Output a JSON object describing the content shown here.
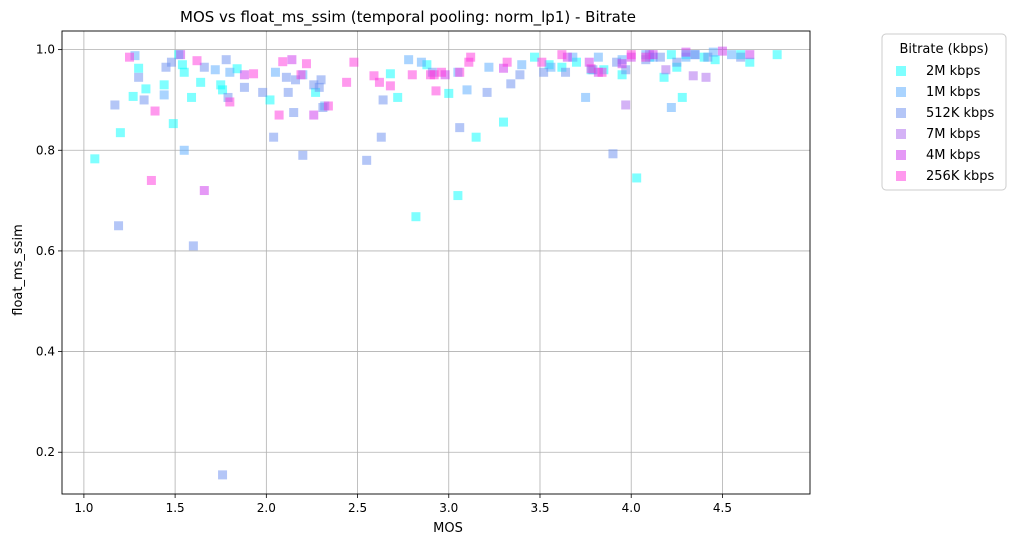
{
  "chart_data": {
    "type": "scatter",
    "title": "MOS vs float_ms_ssim (temporal pooling: norm_lp1) - Bitrate",
    "xlabel": "MOS",
    "ylabel": "float_ms_ssim",
    "xlim": [
      0.88,
      4.98
    ],
    "ylim": [
      0.117,
      1.037
    ],
    "x_ticks": [
      "1.0",
      "1.5",
      "2.0",
      "2.5",
      "3.0",
      "3.5",
      "4.0",
      "4.5"
    ],
    "x_tick_values": [
      1.0,
      1.5,
      2.0,
      2.5,
      3.0,
      3.5,
      4.0,
      4.5
    ],
    "y_ticks": [
      "0.2",
      "0.4",
      "0.6",
      "0.8",
      "1.0"
    ],
    "y_tick_values": [
      0.2,
      0.4,
      0.6,
      0.8,
      1.0
    ],
    "grid": true,
    "legend_title": "Bitrate (kbps)",
    "legend_position": "outside-right",
    "marker": "square",
    "series": [
      {
        "name": "2M kbps",
        "color": "#00ffff",
        "points": [
          [
            1.06,
            0.783
          ],
          [
            1.2,
            0.835
          ],
          [
            1.27,
            0.907
          ],
          [
            1.3,
            0.963
          ],
          [
            1.34,
            0.922
          ],
          [
            1.44,
            0.93
          ],
          [
            1.49,
            0.853
          ],
          [
            1.52,
            0.99
          ],
          [
            1.54,
            0.97
          ],
          [
            1.55,
            0.955
          ],
          [
            1.59,
            0.905
          ],
          [
            1.64,
            0.935
          ],
          [
            1.75,
            0.93
          ],
          [
            1.76,
            0.92
          ],
          [
            1.84,
            0.962
          ],
          [
            2.02,
            0.9
          ],
          [
            2.27,
            0.915
          ],
          [
            2.68,
            0.952
          ],
          [
            2.72,
            0.905
          ],
          [
            2.82,
            0.668
          ],
          [
            2.88,
            0.97
          ],
          [
            3.0,
            0.913
          ],
          [
            3.05,
            0.71
          ],
          [
            3.15,
            0.826
          ],
          [
            3.3,
            0.856
          ],
          [
            3.47,
            0.985
          ],
          [
            3.55,
            0.97
          ],
          [
            3.62,
            0.965
          ],
          [
            3.7,
            0.975
          ],
          [
            3.78,
            0.96
          ],
          [
            3.85,
            0.96
          ],
          [
            3.95,
            0.95
          ],
          [
            4.03,
            0.745
          ],
          [
            4.1,
            0.985
          ],
          [
            4.18,
            0.945
          ],
          [
            4.22,
            0.99
          ],
          [
            4.25,
            0.965
          ],
          [
            4.28,
            0.905
          ],
          [
            4.3,
            0.99
          ],
          [
            4.4,
            0.985
          ],
          [
            4.46,
            0.98
          ],
          [
            4.6,
            0.99
          ],
          [
            4.65,
            0.975
          ],
          [
            4.8,
            0.99
          ]
        ]
      },
      {
        "name": "1M kbps",
        "color": "#55aaff",
        "points": [
          [
            1.28,
            0.988
          ],
          [
            1.44,
            0.91
          ],
          [
            1.55,
            0.8
          ],
          [
            1.72,
            0.96
          ],
          [
            1.8,
            0.955
          ],
          [
            2.05,
            0.955
          ],
          [
            2.2,
            0.95
          ],
          [
            2.32,
            0.888
          ],
          [
            2.78,
            0.98
          ],
          [
            2.85,
            0.975
          ],
          [
            3.05,
            0.955
          ],
          [
            3.1,
            0.92
          ],
          [
            3.22,
            0.965
          ],
          [
            3.4,
            0.97
          ],
          [
            3.56,
            0.965
          ],
          [
            3.68,
            0.985
          ],
          [
            3.75,
            0.905
          ],
          [
            3.82,
            0.985
          ],
          [
            3.95,
            0.98
          ],
          [
            4.08,
            0.99
          ],
          [
            4.12,
            0.985
          ],
          [
            4.22,
            0.885
          ],
          [
            4.3,
            0.985
          ],
          [
            4.35,
            0.99
          ],
          [
            4.45,
            0.995
          ],
          [
            4.55,
            0.99
          ]
        ]
      },
      {
        "name": "512K kbps",
        "color": "#6a8ef0",
        "points": [
          [
            1.17,
            0.89
          ],
          [
            1.19,
            0.65
          ],
          [
            1.3,
            0.945
          ],
          [
            1.33,
            0.9
          ],
          [
            1.45,
            0.965
          ],
          [
            1.48,
            0.975
          ],
          [
            1.6,
            0.61
          ],
          [
            1.66,
            0.965
          ],
          [
            1.76,
            0.155
          ],
          [
            1.78,
            0.98
          ],
          [
            1.79,
            0.905
          ],
          [
            1.88,
            0.925
          ],
          [
            1.98,
            0.915
          ],
          [
            2.04,
            0.826
          ],
          [
            2.11,
            0.945
          ],
          [
            2.12,
            0.915
          ],
          [
            2.15,
            0.875
          ],
          [
            2.16,
            0.94
          ],
          [
            2.2,
            0.79
          ],
          [
            2.26,
            0.93
          ],
          [
            2.29,
            0.925
          ],
          [
            2.3,
            0.94
          ],
          [
            2.31,
            0.885
          ],
          [
            2.55,
            0.78
          ],
          [
            2.63,
            0.826
          ],
          [
            2.64,
            0.9
          ],
          [
            2.91,
            0.955
          ],
          [
            3.06,
            0.845
          ],
          [
            3.21,
            0.915
          ],
          [
            3.34,
            0.932
          ],
          [
            3.39,
            0.95
          ],
          [
            3.52,
            0.955
          ],
          [
            3.64,
            0.955
          ],
          [
            3.79,
            0.96
          ],
          [
            3.9,
            0.793
          ],
          [
            3.92,
            0.975
          ],
          [
            3.97,
            0.96
          ],
          [
            4.08,
            0.98
          ],
          [
            4.16,
            0.985
          ],
          [
            4.25,
            0.975
          ],
          [
            4.35,
            0.99
          ],
          [
            4.42,
            0.985
          ],
          [
            4.6,
            0.985
          ]
        ]
      },
      {
        "name": "7M kbps",
        "color": "#aa66ee",
        "points": [
          [
            3.97,
            0.89
          ],
          [
            4.1,
            0.99
          ],
          [
            4.19,
            0.96
          ],
          [
            4.34,
            0.948
          ],
          [
            4.41,
            0.945
          ]
        ]
      },
      {
        "name": "4M kbps",
        "color": "#cc33ee",
        "points": [
          [
            1.53,
            0.99
          ],
          [
            1.66,
            0.72
          ],
          [
            1.88,
            0.95
          ],
          [
            2.14,
            0.98
          ],
          [
            2.26,
            0.87
          ],
          [
            2.98,
            0.95
          ],
          [
            3.3,
            0.963
          ],
          [
            3.65,
            0.985
          ],
          [
            3.77,
            0.975
          ],
          [
            3.82,
            0.955
          ],
          [
            3.95,
            0.972
          ],
          [
            4.0,
            0.985
          ],
          [
            4.12,
            0.99
          ],
          [
            4.3,
            0.995
          ],
          [
            4.5,
            0.997
          ],
          [
            4.65,
            0.99
          ]
        ]
      },
      {
        "name": "256K kbps",
        "color": "#ff33dd",
        "points": [
          [
            1.25,
            0.985
          ],
          [
            1.37,
            0.74
          ],
          [
            1.39,
            0.878
          ],
          [
            1.62,
            0.978
          ],
          [
            1.8,
            0.896
          ],
          [
            1.93,
            0.952
          ],
          [
            2.07,
            0.87
          ],
          [
            2.09,
            0.976
          ],
          [
            2.19,
            0.95
          ],
          [
            2.22,
            0.972
          ],
          [
            2.34,
            0.888
          ],
          [
            2.44,
            0.935
          ],
          [
            2.48,
            0.975
          ],
          [
            2.59,
            0.948
          ],
          [
            2.62,
            0.935
          ],
          [
            2.68,
            0.928
          ],
          [
            2.8,
            0.95
          ],
          [
            2.9,
            0.95
          ],
          [
            2.92,
            0.95
          ],
          [
            2.93,
            0.918
          ],
          [
            2.96,
            0.955
          ],
          [
            3.06,
            0.955
          ],
          [
            3.11,
            0.975
          ],
          [
            3.12,
            0.985
          ],
          [
            3.32,
            0.975
          ],
          [
            3.51,
            0.975
          ],
          [
            3.62,
            0.99
          ],
          [
            3.78,
            0.962
          ],
          [
            3.84,
            0.955
          ],
          [
            4.0,
            0.99
          ],
          [
            4.08,
            0.985
          ]
        ]
      }
    ]
  }
}
